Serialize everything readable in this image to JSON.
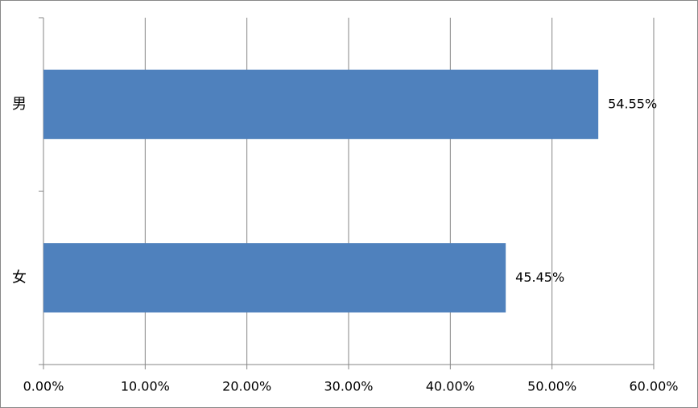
{
  "chart_data": {
    "type": "bar",
    "orientation": "horizontal",
    "categories": [
      "男",
      "女"
    ],
    "values": [
      54.55,
      45.45
    ],
    "value_labels": [
      "54.55%",
      "45.45%"
    ],
    "color": "#4f81bd",
    "xlim": [
      0,
      60
    ],
    "xticks": [
      {
        "value": 0,
        "label": "0.00%"
      },
      {
        "value": 10,
        "label": "10.00%"
      },
      {
        "value": 20,
        "label": "20.00%"
      },
      {
        "value": 30,
        "label": "30.00%"
      },
      {
        "value": 40,
        "label": "40.00%"
      },
      {
        "value": 50,
        "label": "50.00%"
      },
      {
        "value": 60,
        "label": "60.00%"
      }
    ],
    "grid": true
  }
}
